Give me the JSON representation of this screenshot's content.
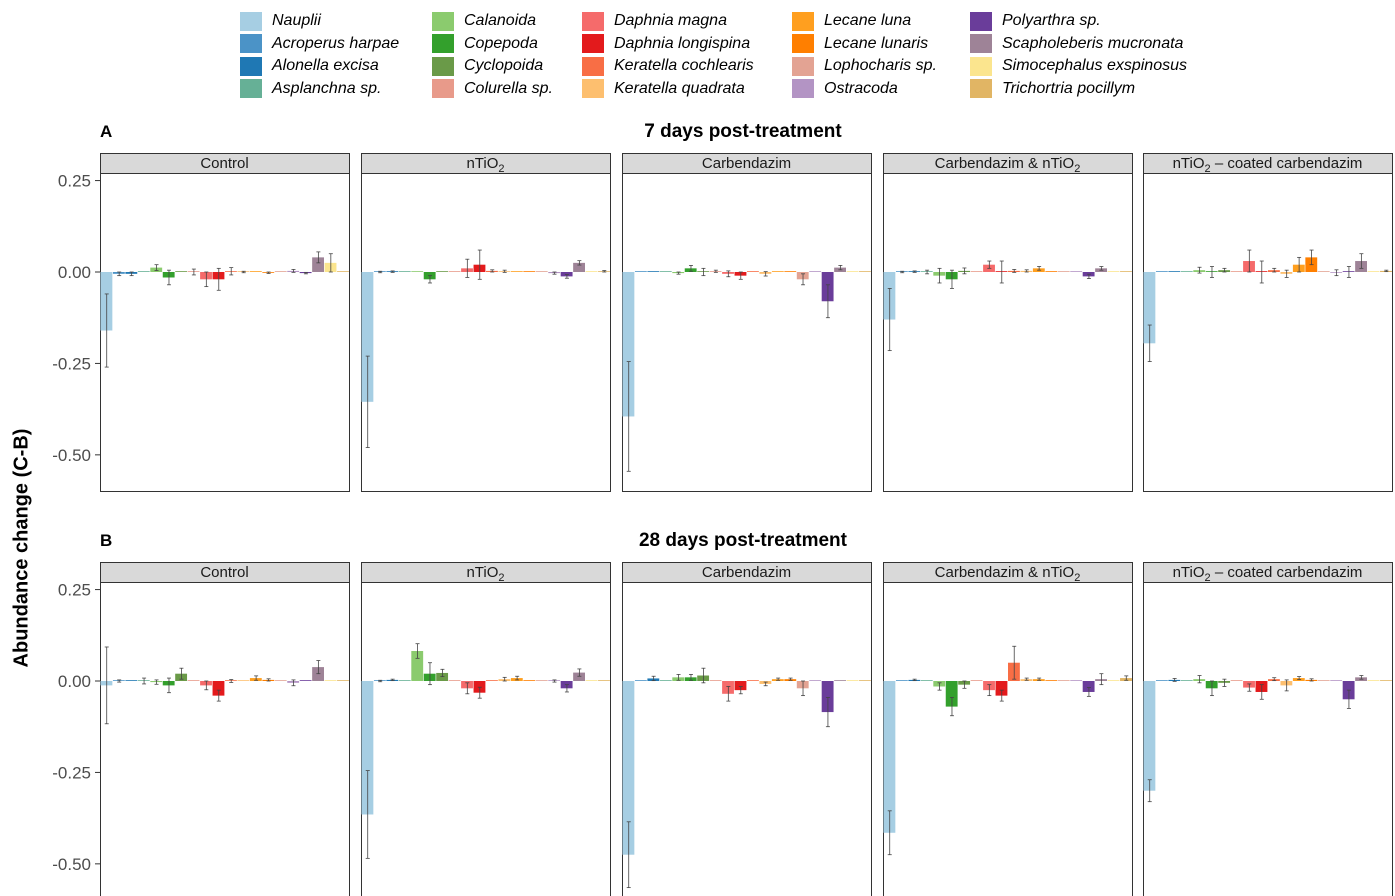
{
  "chart_data": {
    "type": "bar",
    "ylabel": "Abundance change (C-B)",
    "y_ticks": [
      "0.25",
      "0.00",
      "-0.25",
      "-0.50"
    ],
    "y_tick_values": [
      0.25,
      0.0,
      -0.25,
      -0.5
    ],
    "ylim": [
      -0.6,
      0.27
    ],
    "legend_position": "top",
    "taxa": [
      {
        "name": "Nauplii",
        "color": "#a6cee3"
      },
      {
        "name": "Acroperus harpae",
        "color": "#4b93c7"
      },
      {
        "name": "Alonella excisa",
        "color": "#1f78b4"
      },
      {
        "name": "Asplanchna sp.",
        "color": "#66b096"
      },
      {
        "name": "Calanoida",
        "color": "#8bcb6e"
      },
      {
        "name": "Copepoda",
        "color": "#33a02c"
      },
      {
        "name": "Cyclopoida",
        "color": "#6a9a48"
      },
      {
        "name": "Colurella sp.",
        "color": "#e89a8a"
      },
      {
        "name": "Daphnia magna",
        "color": "#f56b6b"
      },
      {
        "name": "Daphnia longispina",
        "color": "#e31a1c"
      },
      {
        "name": "Keratella cochlearis",
        "color": "#f86e45"
      },
      {
        "name": "Keratella quadrata",
        "color": "#fdbf6f"
      },
      {
        "name": "Lecane luna",
        "color": "#ff9f1f"
      },
      {
        "name": "Lecane lunaris",
        "color": "#ff7f00"
      },
      {
        "name": "Lophocharis sp.",
        "color": "#e3a393"
      },
      {
        "name": "Ostracoda",
        "color": "#b394c4"
      },
      {
        "name": "Polyarthra sp.",
        "color": "#6a3d9a"
      },
      {
        "name": "Scapholeberis mucronata",
        "color": "#9e8397"
      },
      {
        "name": "Simocephalus exspinosus",
        "color": "#fbe58e"
      },
      {
        "name": "Trichortria pocillym",
        "color": "#e1b564"
      }
    ],
    "rows": [
      {
        "tag": "A",
        "title": "7 days post-treatment",
        "panels": [
          {
            "label": "Control",
            "values": [
              -0.16,
              -0.005,
              -0.005,
              0.0,
              0.012,
              -0.015,
              0.0,
              0.0,
              -0.02,
              -0.02,
              0.002,
              0.0,
              0.0,
              -0.002,
              0.0,
              0.003,
              -0.003,
              0.04,
              0.025,
              0.0
            ],
            "errors": [
              0.1,
              0.005,
              0.005,
              0.0,
              0.008,
              0.02,
              0.0,
              0.008,
              0.02,
              0.03,
              0.01,
              0.002,
              0.0,
              0.002,
              0.0,
              0.004,
              0.002,
              0.015,
              0.025,
              0.0
            ]
          },
          {
            "label": "nTiO2",
            "values": [
              -0.355,
              0.0,
              0.001,
              0.0,
              0.0,
              -0.02,
              0.0,
              0.0,
              0.01,
              0.02,
              0.003,
              0.002,
              0.0,
              0.0,
              0.0,
              -0.003,
              -0.012,
              0.025,
              0.0,
              0.002
            ],
            "errors": [
              0.125,
              0.002,
              0.002,
              0.0,
              0.0,
              0.01,
              0.0,
              0.0,
              0.025,
              0.04,
              0.003,
              0.003,
              0.0,
              0.0,
              0.0,
              0.003,
              0.005,
              0.006,
              0.0,
              0.002
            ]
          },
          {
            "label": "Carbendazim",
            "values": [
              -0.395,
              0.0,
              0.0,
              0.0,
              -0.003,
              0.01,
              0.0,
              0.002,
              -0.005,
              -0.01,
              0.0,
              -0.005,
              0.0,
              0.0,
              -0.02,
              0.0,
              -0.08,
              0.012,
              0.0,
              0.0
            ],
            "errors": [
              0.15,
              0.0,
              0.0,
              0.0,
              0.003,
              0.008,
              0.01,
              0.003,
              0.008,
              0.01,
              0.0,
              0.006,
              0.0,
              0.0,
              0.015,
              0.0,
              0.045,
              0.006,
              0.0,
              0.0
            ]
          },
          {
            "label": "Carbendazim & nTiO2",
            "values": [
              -0.13,
              0.0,
              0.001,
              0.0,
              -0.01,
              -0.02,
              0.003,
              0.0,
              0.02,
              0.0,
              0.003,
              0.003,
              0.01,
              0.0,
              0.0,
              0.0,
              -0.012,
              0.01,
              0.0,
              0.0
            ],
            "errors": [
              0.085,
              0.002,
              0.002,
              0.005,
              0.02,
              0.025,
              0.008,
              0.0,
              0.01,
              0.03,
              0.004,
              0.003,
              0.005,
              0.0,
              0.0,
              0.0,
              0.006,
              0.005,
              0.0,
              0.0
            ]
          },
          {
            "label": "nTiO2 – coated carbendazim",
            "values": [
              -0.195,
              0.0,
              0.0,
              0.0,
              0.005,
              0.0,
              0.005,
              0.0,
              0.03,
              0.0,
              0.005,
              -0.005,
              0.02,
              0.04,
              0.0,
              -0.002,
              0.0,
              0.03,
              0.0,
              0.003
            ],
            "errors": [
              0.05,
              0.0,
              0.0,
              0.0,
              0.008,
              0.015,
              0.005,
              0.0,
              0.03,
              0.03,
              0.005,
              0.01,
              0.02,
              0.02,
              0.0,
              0.008,
              0.015,
              0.02,
              0.0,
              0.002
            ]
          }
        ]
      },
      {
        "tag": "B",
        "title": "28 days post-treatment",
        "panels": [
          {
            "label": "Control",
            "values": [
              -0.012,
              0.0,
              0.0,
              0.0,
              -0.003,
              -0.012,
              0.02,
              0.0,
              -0.012,
              -0.04,
              0.0,
              0.0,
              0.008,
              0.003,
              0.0,
              -0.005,
              0.0,
              0.038,
              0.0,
              0.0
            ],
            "errors": [
              0.105,
              0.003,
              0.0,
              0.008,
              0.006,
              0.02,
              0.015,
              0.0,
              0.012,
              0.015,
              0.004,
              0.0,
              0.006,
              0.003,
              0.0,
              0.008,
              0.0,
              0.018,
              0.0,
              0.0
            ]
          },
          {
            "label": "nTiO2",
            "values": [
              -0.365,
              0.0,
              0.003,
              0.0,
              0.082,
              0.02,
              0.022,
              0.0,
              -0.02,
              -0.032,
              0.0,
              0.005,
              0.008,
              0.0,
              0.0,
              0.0,
              -0.02,
              0.023,
              0.0,
              0.0
            ],
            "errors": [
              0.12,
              0.002,
              0.002,
              0.0,
              0.02,
              0.03,
              0.01,
              0.0,
              0.015,
              0.015,
              0.0,
              0.005,
              0.005,
              0.0,
              0.0,
              0.003,
              0.01,
              0.01,
              0.0,
              0.0
            ]
          },
          {
            "label": "Carbendazim",
            "values": [
              -0.475,
              0.0,
              0.007,
              0.0,
              0.01,
              0.01,
              0.015,
              0.0,
              -0.035,
              -0.025,
              0.0,
              -0.008,
              0.005,
              0.005,
              -0.02,
              0.0,
              -0.085,
              0.0,
              0.0,
              0.0
            ],
            "errors": [
              0.09,
              0.0,
              0.006,
              0.0,
              0.008,
              0.008,
              0.02,
              0.0,
              0.02,
              0.01,
              0.0,
              0.005,
              0.003,
              0.003,
              0.02,
              0.0,
              0.04,
              0.0,
              0.0,
              0.0
            ]
          },
          {
            "label": "Carbendazim & nTiO2",
            "values": [
              -0.415,
              0.0,
              0.003,
              0.0,
              -0.015,
              -0.07,
              -0.01,
              0.0,
              -0.025,
              -0.04,
              0.05,
              0.005,
              0.005,
              0.0,
              0.0,
              0.0,
              -0.03,
              0.005,
              0.0,
              0.008
            ],
            "errors": [
              0.06,
              0.0,
              0.002,
              0.0,
              0.01,
              0.025,
              0.01,
              0.0,
              0.015,
              0.015,
              0.045,
              0.003,
              0.003,
              0.0,
              0.0,
              0.0,
              0.012,
              0.015,
              0.0,
              0.006
            ]
          },
          {
            "label": "nTiO2 – coated carbendazim",
            "values": [
              -0.3,
              0.0,
              0.003,
              0.0,
              0.005,
              -0.02,
              -0.005,
              0.0,
              -0.018,
              -0.03,
              0.005,
              -0.012,
              0.008,
              0.003,
              0.0,
              0.0,
              -0.05,
              0.01,
              0.0,
              0.0
            ],
            "errors": [
              0.03,
              0.0,
              0.004,
              0.0,
              0.01,
              0.02,
              0.01,
              0.0,
              0.01,
              0.02,
              0.004,
              0.015,
              0.004,
              0.003,
              0.0,
              0.0,
              0.025,
              0.005,
              0.0,
              0.0
            ]
          }
        ]
      }
    ]
  }
}
